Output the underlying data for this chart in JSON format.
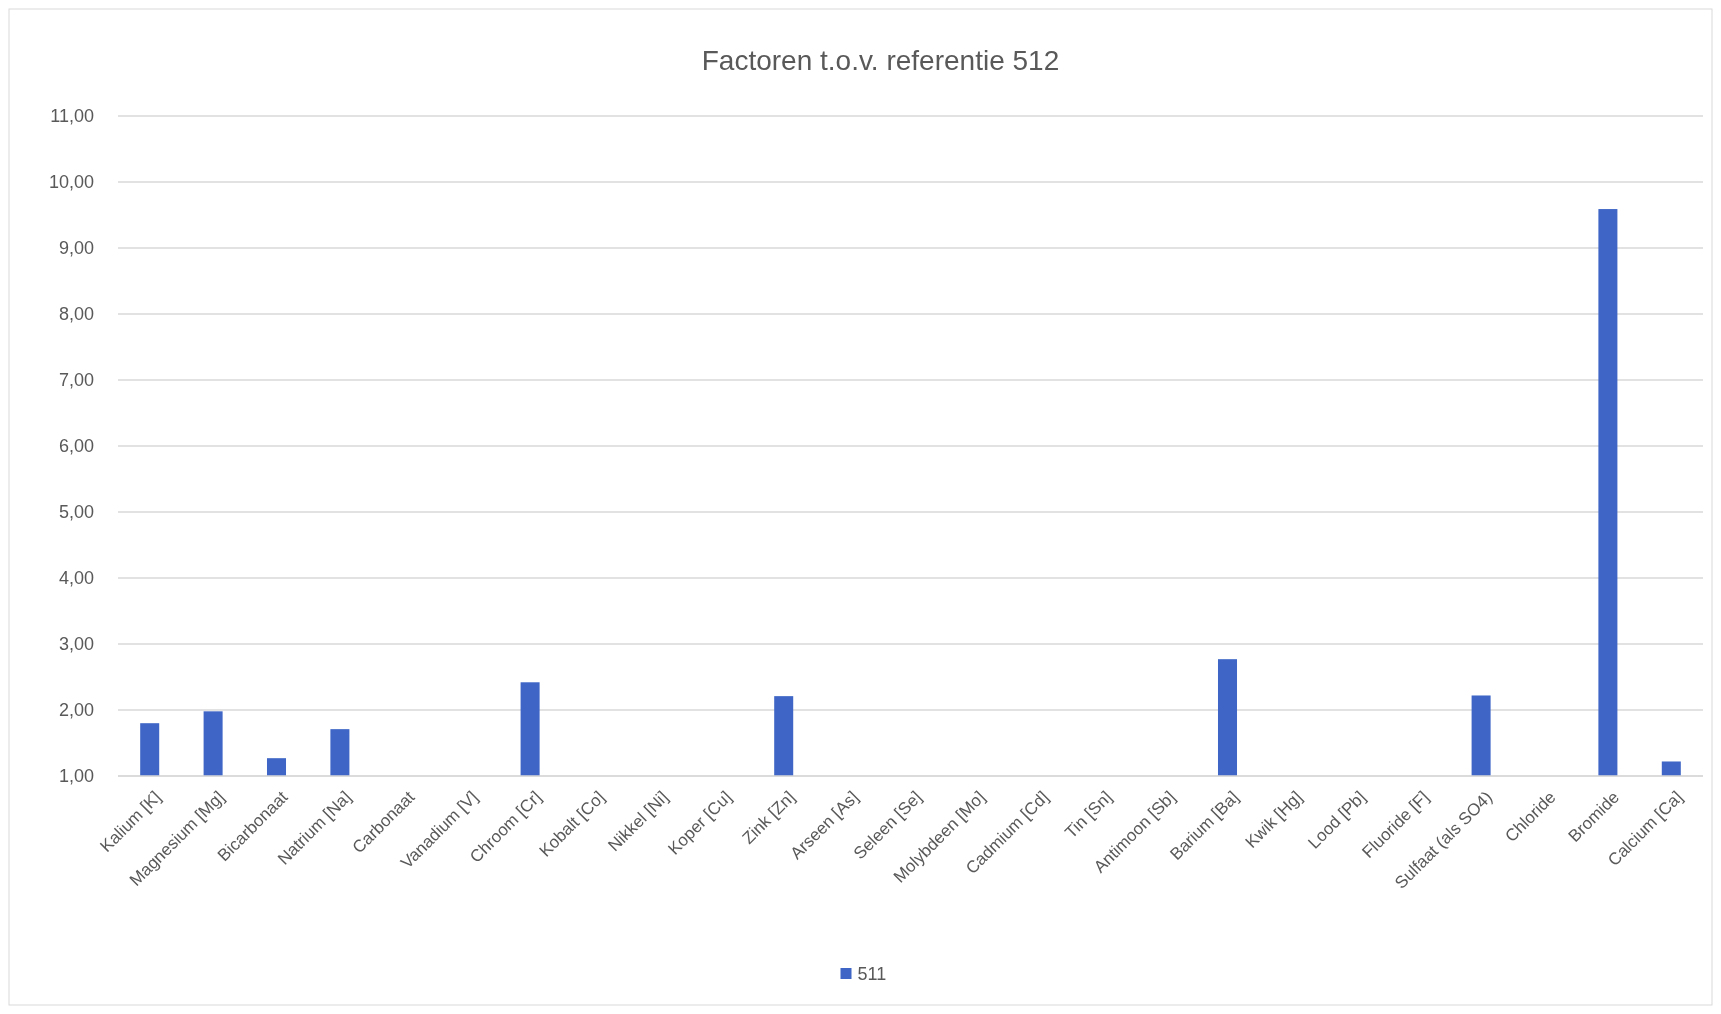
{
  "chart_data": {
    "type": "bar",
    "title": "Factoren t.o.v. referentie 512",
    "categories": [
      "Kalium [K]",
      "Magnesium [Mg]",
      "Bicarbonaat",
      "Natrium [Na]",
      "Carbonaat",
      "Vanadium [V]",
      "Chroom [Cr]",
      "Kobalt [Co]",
      "Nikkel [Ni]",
      "Koper [Cu]",
      "Zink [Zn]",
      "Arseen [As]",
      "Seleen [Se]",
      "Molybdeen [Mo]",
      "Cadmium [Cd]",
      "Tin [Sn]",
      "Antimoon [Sb]",
      "Barium [Ba]",
      "Kwik [Hg]",
      "Lood [Pb]",
      "Fluoride [F]",
      "Sulfaat (als SO4)",
      "Chloride",
      "Bromide",
      "Calcium [Ca]"
    ],
    "series": [
      {
        "name": "511",
        "color": "#3f66c6",
        "values": [
          1.8,
          1.98,
          1.27,
          1.71,
          null,
          null,
          2.42,
          null,
          1.0,
          null,
          2.21,
          1.0,
          null,
          null,
          null,
          null,
          null,
          2.77,
          null,
          null,
          1.0,
          2.22,
          1.0,
          9.59,
          1.22
        ]
      }
    ],
    "ylim": [
      1,
      11
    ],
    "yticks": [
      {
        "value": 1,
        "label": "1,00"
      },
      {
        "value": 2,
        "label": "2,00"
      },
      {
        "value": 3,
        "label": "3,00"
      },
      {
        "value": 4,
        "label": "4,00"
      },
      {
        "value": 5,
        "label": "5,00"
      },
      {
        "value": 6,
        "label": "6,00"
      },
      {
        "value": 7,
        "label": "7,00"
      },
      {
        "value": 8,
        "label": "8,00"
      },
      {
        "value": 9,
        "label": "9,00"
      },
      {
        "value": 10,
        "label": "10,00"
      },
      {
        "value": 11,
        "label": "11,00"
      }
    ],
    "grid": "y",
    "legend": "bottom"
  }
}
